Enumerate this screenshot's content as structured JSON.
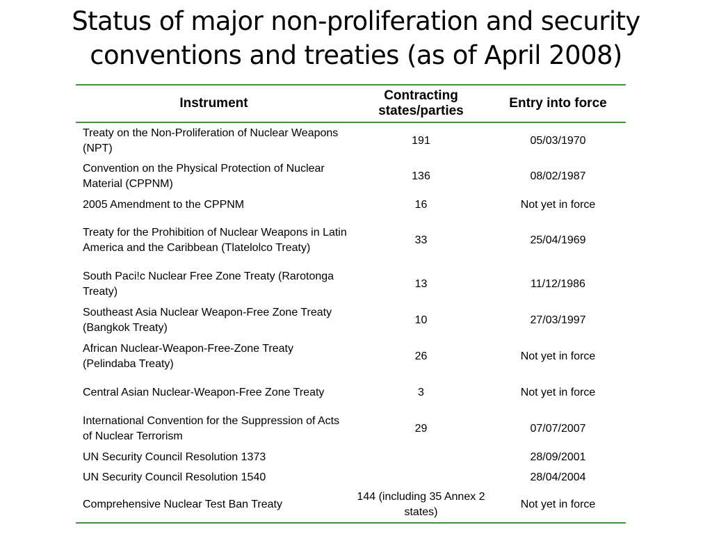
{
  "title": {
    "line1": "Status of major non-proliferation and security",
    "line2": "conventions and treaties (as of April 2008)"
  },
  "table": {
    "headers": {
      "instrument": "Instrument",
      "parties": "Contracting states/parties",
      "entry": "Entry into force"
    },
    "rows": [
      {
        "instrument": "Treaty on the Non-Proliferation of Nuclear Weapons (NPT)",
        "parties": "191",
        "entry": "05/03/1970"
      },
      {
        "instrument": "Convention on the Physical Protection of Nuclear Material (CPPNM)",
        "parties": "136",
        "entry": "08/02/1987"
      },
      {
        "instrument": "2005 Amendment to the CPPNM",
        "parties": "16",
        "entry": "Not yet in force"
      },
      {
        "instrument": "Treaty for the Prohibition of Nuclear Weapons in Latin America and the Caribbean (Tlatelolco Treaty)",
        "parties": "33",
        "entry": "25/04/1969"
      },
      {
        "instrument": "South Paci!c Nuclear Free Zone Treaty (Rarotonga Treaty)",
        "parties": "13",
        "entry": "11/12/1986"
      },
      {
        "instrument": "Southeast Asia Nuclear Weapon-Free Zone Treaty (Bangkok Treaty)",
        "parties": "10",
        "entry": "27/03/1997"
      },
      {
        "instrument": "African Nuclear-Weapon-Free-Zone Treaty (Pelindaba Treaty)",
        "parties": "26",
        "entry": "Not yet in force"
      },
      {
        "instrument": "Central Asian Nuclear-Weapon-Free Zone Treaty",
        "parties": "3",
        "entry": "Not yet in force"
      },
      {
        "instrument": "International Convention for the Suppression of Acts of Nuclear Terrorism",
        "parties": "29",
        "entry": "07/07/2007"
      },
      {
        "instrument": "UN Security Council Resolution 1373",
        "parties": "",
        "entry": "28/09/2001"
      },
      {
        "instrument": "UN Security Council Resolution 1540",
        "parties": "",
        "entry": "28/04/2004"
      },
      {
        "instrument": "Comprehensive Nuclear Test Ban Treaty",
        "parties": "144 (including 35 Annex 2 states)",
        "entry": "Not yet in force"
      }
    ]
  }
}
